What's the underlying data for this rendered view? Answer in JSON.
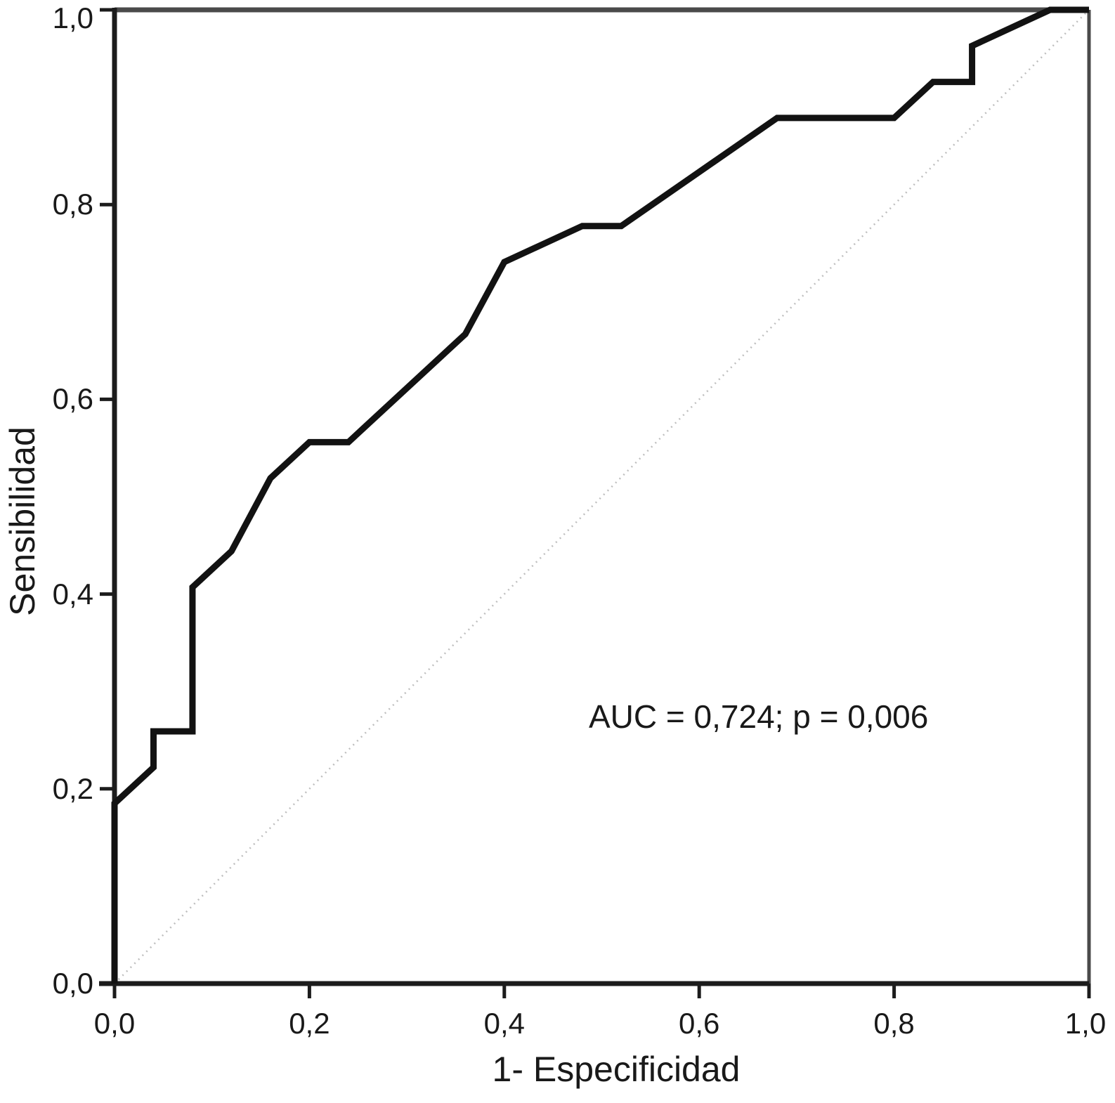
{
  "chart_data": {
    "type": "line",
    "title": "",
    "xlabel": "1- Especificidad",
    "ylabel": "Sensibilidad",
    "xlim": [
      0.0,
      1.0
    ],
    "ylim": [
      0.0,
      1.0
    ],
    "grid": false,
    "legend": "none",
    "x_ticks": [
      0.0,
      0.2,
      0.4,
      0.6,
      0.8,
      1.0
    ],
    "x_tick_labels": [
      "0,0",
      "0,2",
      "0,4",
      "0,6",
      "0,8",
      "1,0"
    ],
    "y_ticks": [
      0.0,
      0.2,
      0.4,
      0.6,
      0.8,
      1.0
    ],
    "y_tick_labels": [
      "0,0",
      "0,2",
      "0,4",
      "0,6",
      "0,8",
      "1,0"
    ],
    "annotation": {
      "text": "AUC = 0,724; p = 0,006",
      "x": 0.49,
      "y": 0.275
    },
    "auc": "0,724",
    "p_value": "0,006",
    "series": [
      {
        "name": "reference-diagonal",
        "color": "#bfbfbf",
        "width": 2.5,
        "dash": "2 6",
        "points": [
          [
            0.0,
            0.0
          ],
          [
            1.0,
            1.0
          ]
        ]
      },
      {
        "name": "roc-curve",
        "color": "#121212",
        "width": 9,
        "dash": "",
        "points": [
          [
            0.0,
            0.0
          ],
          [
            0.0,
            0.185
          ],
          [
            0.04,
            0.222
          ],
          [
            0.04,
            0.259
          ],
          [
            0.08,
            0.259
          ],
          [
            0.08,
            0.407
          ],
          [
            0.12,
            0.444
          ],
          [
            0.16,
            0.519
          ],
          [
            0.2,
            0.556
          ],
          [
            0.24,
            0.556
          ],
          [
            0.36,
            0.667
          ],
          [
            0.4,
            0.741
          ],
          [
            0.48,
            0.778
          ],
          [
            0.52,
            0.778
          ],
          [
            0.68,
            0.889
          ],
          [
            0.8,
            0.889
          ],
          [
            0.84,
            0.926
          ],
          [
            0.88,
            0.926
          ],
          [
            0.88,
            0.963
          ],
          [
            0.96,
            1.0
          ],
          [
            1.0,
            1.0
          ]
        ]
      }
    ],
    "axis_colors": {
      "axis": "#1c1c1c",
      "box": "#4a4a4a",
      "tick": "#1c1c1c"
    }
  }
}
